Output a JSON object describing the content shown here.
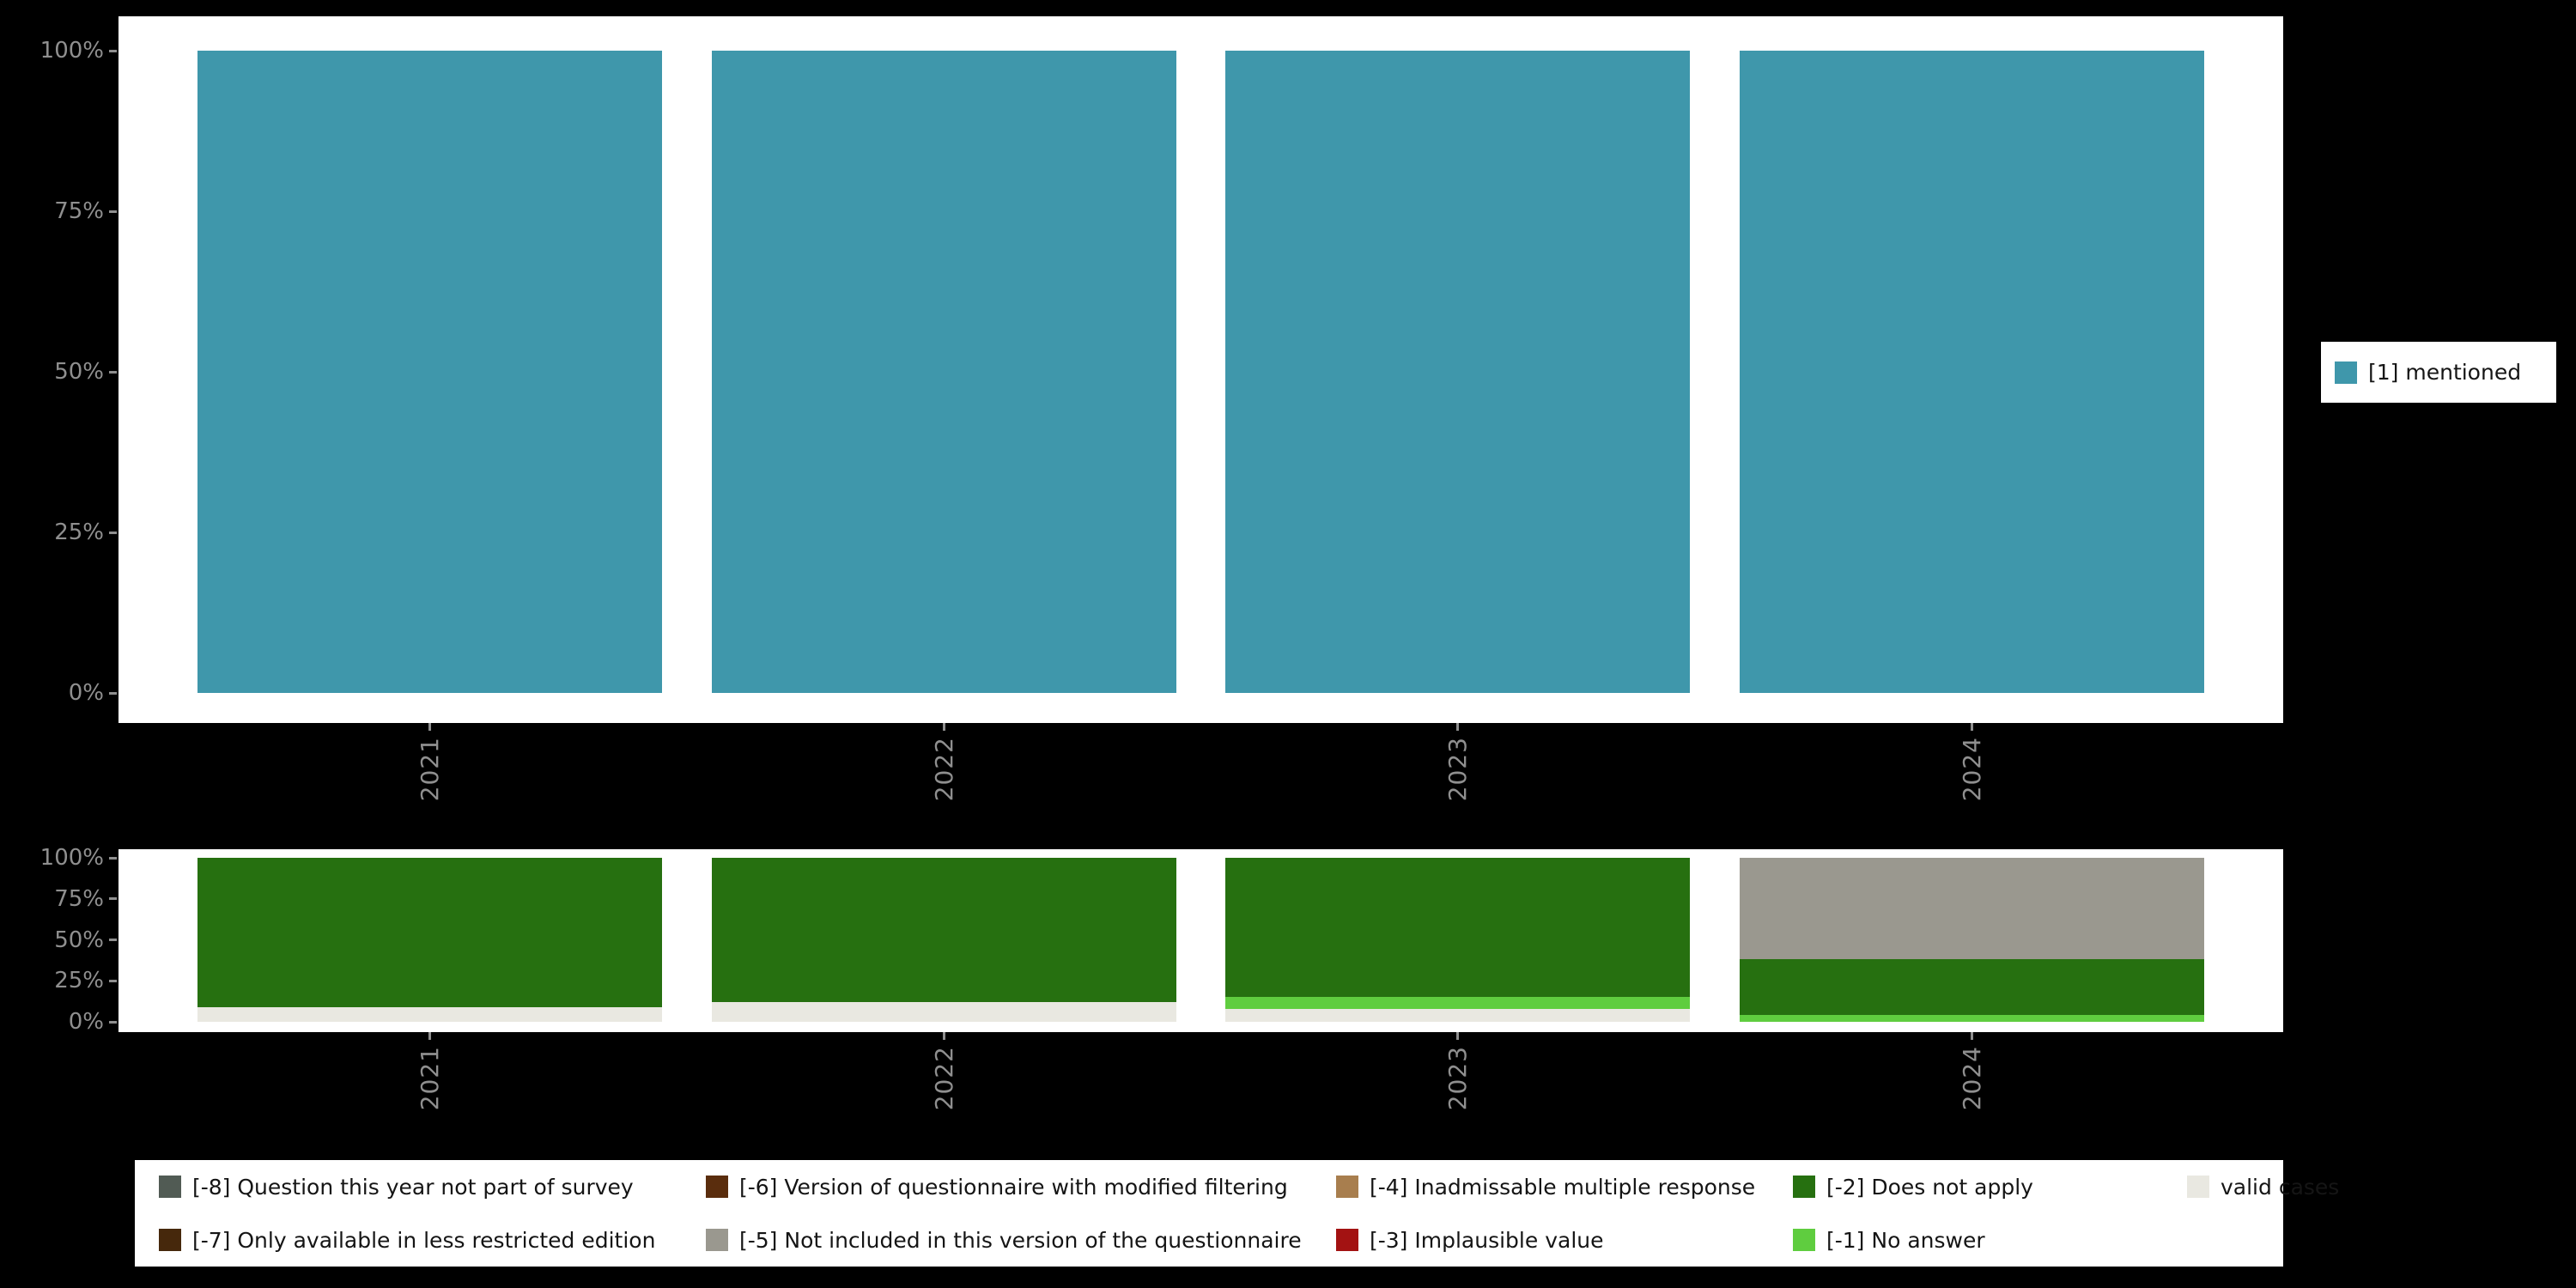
{
  "page": {
    "background_color": "#000000",
    "panel_color": "#ffffff",
    "axis_text_color": "#8f8f8f"
  },
  "chart_data": [
    {
      "id": "mentioned-over-years",
      "type": "bar",
      "stacked": true,
      "title": "",
      "xlabel": "",
      "ylabel": "",
      "categories": [
        "2021",
        "2022",
        "2023",
        "2024"
      ],
      "yticks": [
        "100%",
        "75%",
        "50%",
        "25%",
        "0%"
      ],
      "ylim": [
        0,
        100
      ],
      "grid": false,
      "legend_position": "right",
      "series": [
        {
          "name": "[1] mentioned",
          "color": "#3f97ab",
          "values": [
            100,
            100,
            100,
            100
          ]
        }
      ]
    },
    {
      "id": "missing-values-over-years",
      "type": "bar",
      "stacked": true,
      "title": "",
      "xlabel": "",
      "ylabel": "",
      "categories": [
        "2021",
        "2022",
        "2023",
        "2024"
      ],
      "yticks": [
        "100%",
        "75%",
        "50%",
        "25%",
        "0%"
      ],
      "ylim": [
        0,
        100
      ],
      "grid": false,
      "legend_position": "bottom",
      "series": [
        {
          "name": "valid cases",
          "color": "#e9e8e1",
          "values": [
            9,
            12,
            8,
            0
          ]
        },
        {
          "name": "[-1] No answer",
          "color": "#5fcd3f",
          "values": [
            0,
            0,
            7,
            4
          ]
        },
        {
          "name": "[-2] Does not apply",
          "color": "#267010",
          "values": [
            91,
            88,
            85,
            34
          ]
        },
        {
          "name": "[-5] Not included in this version of the questionnaire",
          "color": "#9a988f",
          "values": [
            0,
            0,
            0,
            62
          ]
        }
      ]
    }
  ],
  "legend_top": {
    "items": [
      {
        "label": "[1] mentioned",
        "color": "#3f97ab"
      }
    ]
  },
  "legend_bottom": {
    "items": [
      {
        "label": "[-8] Question this year not part of survey",
        "color": "#515b54"
      },
      {
        "label": "[-7] Only available in less restricted edition",
        "color": "#46280c"
      },
      {
        "label": "[-6] Version of questionnaire with modified filtering",
        "color": "#5a2d0d"
      },
      {
        "label": "[-5] Not included in this version of the questionnaire",
        "color": "#9a988f"
      },
      {
        "label": "[-4] Inadmissable multiple response",
        "color": "#a87e4e"
      },
      {
        "label": "[-3] Implausible value",
        "color": "#a31212"
      },
      {
        "label": "[-2] Does not apply",
        "color": "#267010"
      },
      {
        "label": "[-1] No answer",
        "color": "#5fcd3f"
      },
      {
        "label": "valid cases",
        "color": "#e9e8e1"
      }
    ]
  }
}
